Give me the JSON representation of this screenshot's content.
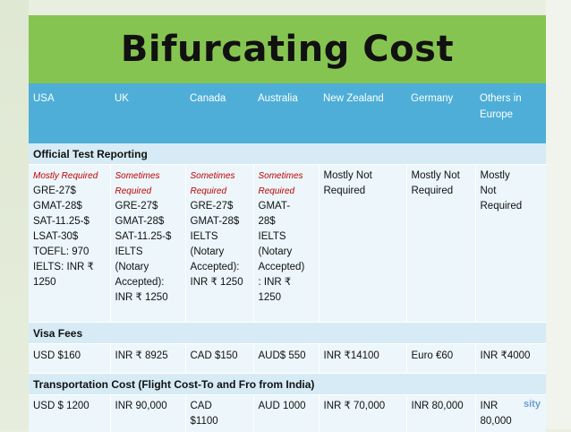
{
  "slide": {
    "title": "Bifurcating Cost",
    "watermark": "sity"
  },
  "table": {
    "headers": [
      "USA",
      "UK",
      "Canada",
      "Australia",
      "New Zealand",
      "Germany",
      "Others in Europe"
    ],
    "sections": {
      "official_test": "Official Test Reporting",
      "visa": "Visa Fees",
      "transport": "Transportation Cost (Flight Cost-To and Fro from India)"
    },
    "official_test": [
      {
        "status": "Mostly Required",
        "lines": [
          "GRE-27$",
          "GMAT-28$",
          "SAT-11.25-$",
          "LSAT-30$",
          "TOEFL: 970",
          "IELTS: INR ₹",
          "1250"
        ]
      },
      {
        "status": "Sometimes Required",
        "lines": [
          "GRE-27$",
          "GMAT-28$",
          "SAT-11.25-$",
          "IELTS",
          "(Notary",
          "Accepted):",
          "INR ₹ 1250"
        ]
      },
      {
        "status": "Sometimes Required",
        "lines": [
          "GRE-27$",
          "GMAT-28$",
          "IELTS",
          "(Notary",
          "Accepted):",
          "INR ₹  1250"
        ]
      },
      {
        "status": "Sometimes Required",
        "lines": [
          "GMAT-",
          "28$",
          "IELTS",
          "(Notary",
          "Accepted)",
          ": INR ₹",
          "1250"
        ]
      },
      {
        "status": "",
        "lines": [
          "Mostly Not",
          "Required"
        ]
      },
      {
        "status": "",
        "lines": [
          "Mostly Not",
          "Required"
        ]
      },
      {
        "status": "",
        "lines": [
          "Mostly",
          "Not",
          "Required"
        ]
      }
    ],
    "visa": [
      "USD $160",
      "INR ₹ 8925",
      "CAD $150",
      "AUD$ 550",
      "INR ₹14100",
      "Euro €60",
      "INR ₹4000"
    ],
    "transport": [
      [
        "USD $ 1200"
      ],
      [
        "INR 90,000"
      ],
      [
        "CAD",
        "$1100"
      ],
      [
        "AUD 1000"
      ],
      [
        "INR ₹ 70,000"
      ],
      [
        "INR 80,000"
      ],
      [
        "INR",
        "80,000"
      ]
    ]
  }
}
